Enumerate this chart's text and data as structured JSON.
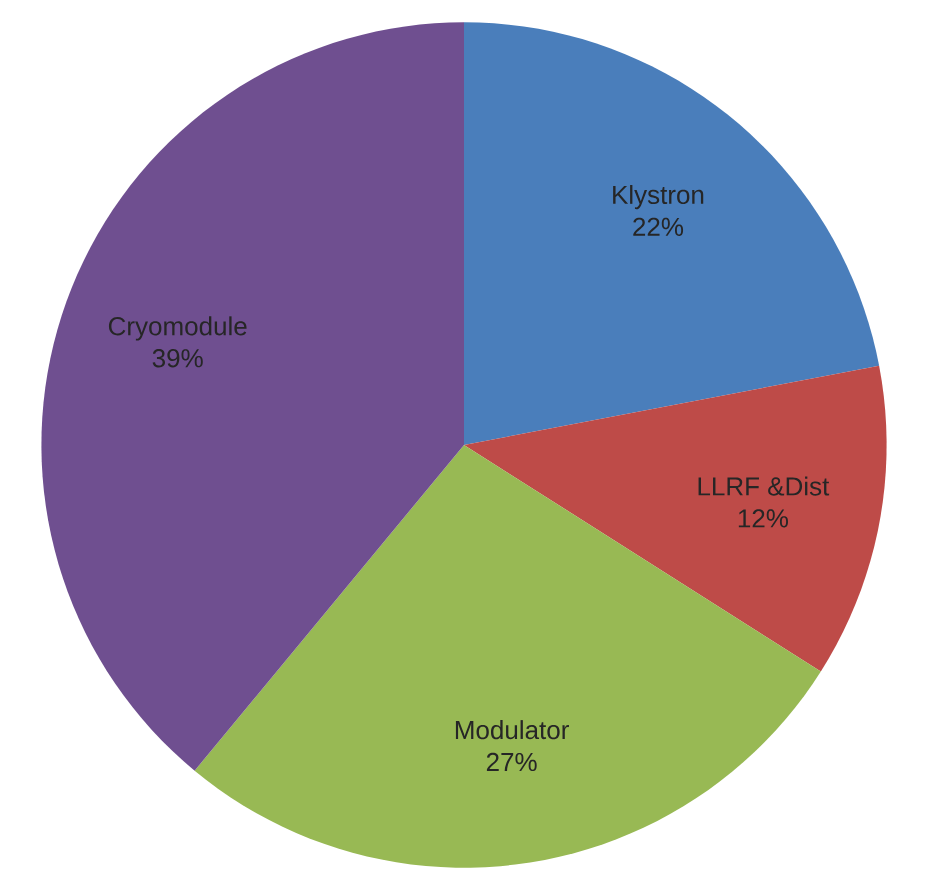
{
  "chart_data": {
    "type": "pie",
    "categories": [
      "Klystron",
      "LLRF &Dist",
      "Modulator",
      "Cryomodule"
    ],
    "values": [
      22,
      12,
      27,
      39
    ],
    "value_labels": [
      "22%",
      "12%",
      "27%",
      "39%"
    ],
    "colors": [
      "#4a7ebb",
      "#be4b48",
      "#98b954",
      "#6f4f90"
    ]
  }
}
